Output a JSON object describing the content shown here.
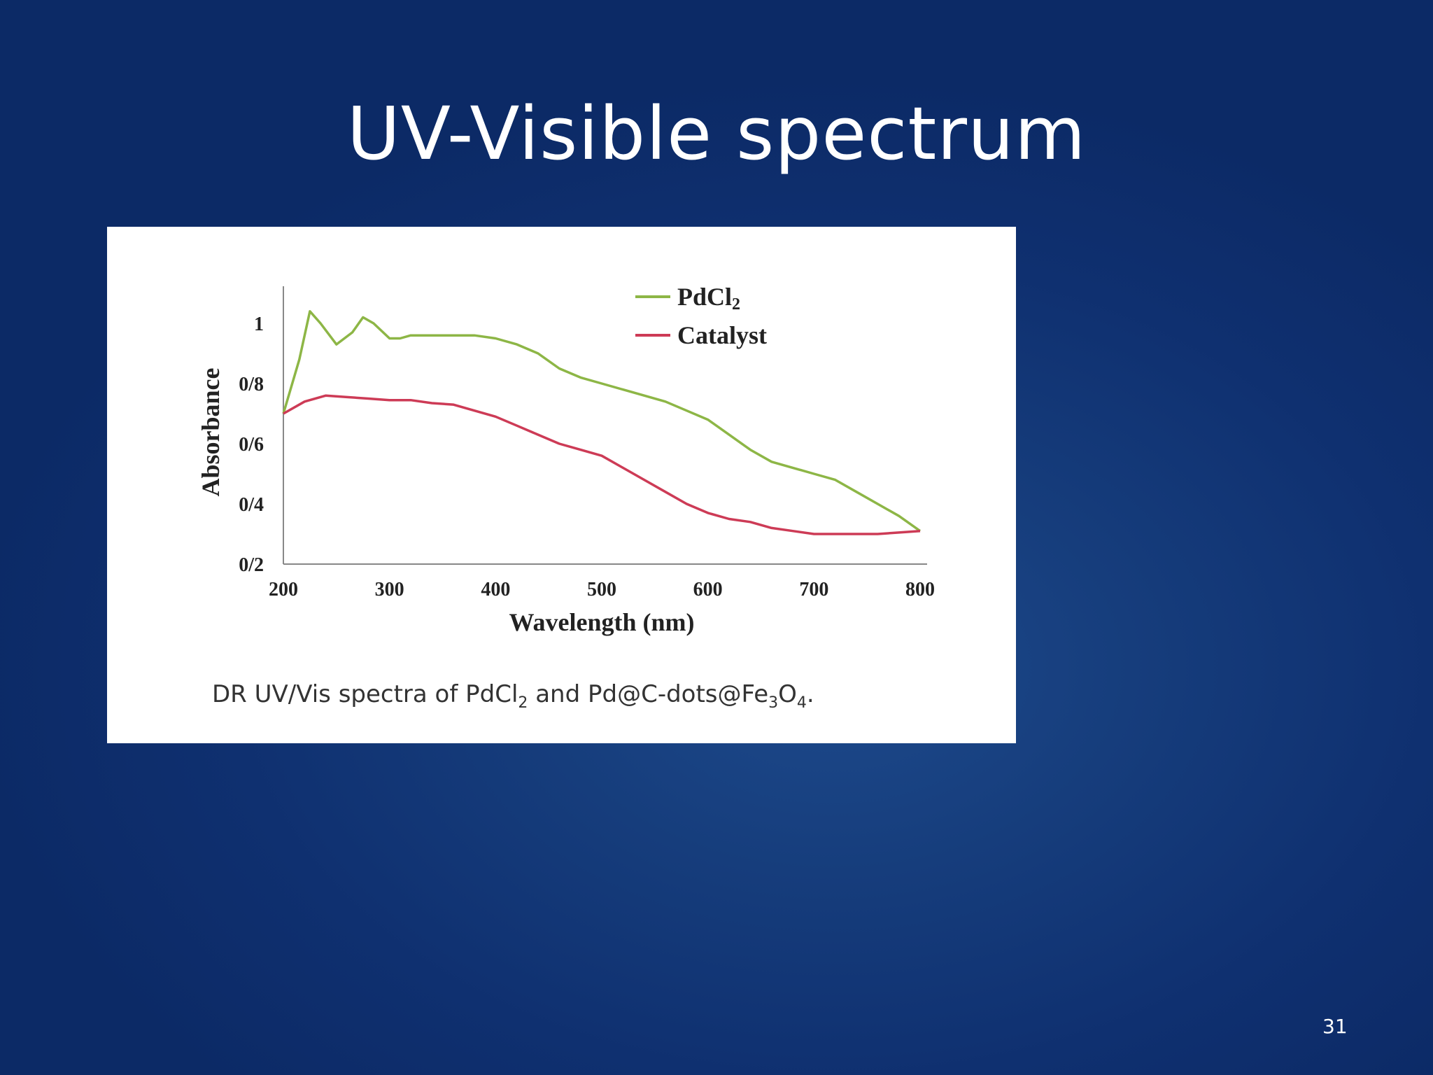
{
  "slide": {
    "title": "UV-Visible spectrum",
    "page_number": "31"
  },
  "figure": {
    "caption_prefix": "DR UV/Vis spectra of PdCl",
    "caption_sub1": "2",
    "caption_mid": " and Pd@C-dots@Fe",
    "caption_sub2": "3",
    "caption_o": "O",
    "caption_sub3": "4",
    "caption_end": "."
  },
  "chart_data": {
    "type": "line",
    "xlabel": "Wavelength (nm)",
    "ylabel": "Absorbance",
    "xlim": [
      200,
      800
    ],
    "ylim": [
      0.2,
      1.1
    ],
    "x_ticks": [
      200,
      300,
      400,
      500,
      600,
      700,
      800
    ],
    "x_tick_labels": [
      "200",
      "300",
      "400",
      "500",
      "600",
      "700",
      "800"
    ],
    "y_ticks": [
      0.2,
      0.4,
      0.6,
      0.8,
      1.0
    ],
    "y_tick_labels": [
      "0/2",
      "0/4",
      "0/6",
      "0/8",
      "1"
    ],
    "legend_position": "top-right",
    "series": [
      {
        "name": "PdCl",
        "name_sub": "2",
        "color": "#8db646",
        "x": [
          200,
          215,
          225,
          235,
          250,
          265,
          275,
          285,
          300,
          310,
          320,
          340,
          360,
          380,
          400,
          420,
          440,
          460,
          480,
          500,
          520,
          540,
          560,
          580,
          600,
          620,
          640,
          660,
          680,
          700,
          720,
          740,
          760,
          780,
          800
        ],
        "y": [
          0.7,
          0.88,
          1.04,
          1.0,
          0.93,
          0.97,
          1.02,
          1.0,
          0.95,
          0.95,
          0.96,
          0.96,
          0.96,
          0.96,
          0.95,
          0.93,
          0.9,
          0.85,
          0.82,
          0.8,
          0.78,
          0.76,
          0.74,
          0.71,
          0.68,
          0.63,
          0.58,
          0.54,
          0.52,
          0.5,
          0.48,
          0.44,
          0.4,
          0.36,
          0.31
        ]
      },
      {
        "name": "Catalyst",
        "color": "#cd3b56",
        "x": [
          200,
          220,
          240,
          260,
          280,
          300,
          320,
          340,
          360,
          380,
          400,
          420,
          440,
          460,
          480,
          500,
          520,
          540,
          560,
          580,
          600,
          620,
          640,
          660,
          680,
          700,
          720,
          740,
          760,
          780,
          800
        ],
        "y": [
          0.7,
          0.74,
          0.76,
          0.755,
          0.75,
          0.745,
          0.745,
          0.735,
          0.73,
          0.71,
          0.69,
          0.66,
          0.63,
          0.6,
          0.58,
          0.56,
          0.52,
          0.48,
          0.44,
          0.4,
          0.37,
          0.35,
          0.34,
          0.32,
          0.31,
          0.3,
          0.3,
          0.3,
          0.3,
          0.305,
          0.31
        ]
      }
    ]
  }
}
